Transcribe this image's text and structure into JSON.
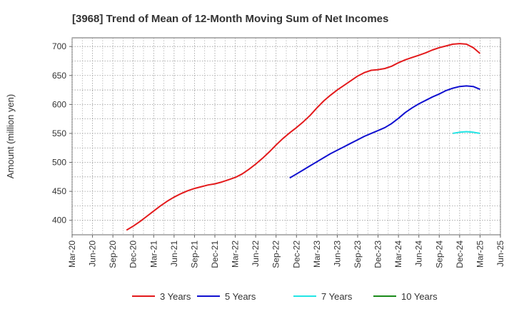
{
  "chart_data": {
    "type": "line",
    "title": "[3968]  Trend of Mean of 12-Month Moving Sum of Net Incomes",
    "ylabel": "Amount (million yen)",
    "xlabel": "",
    "ylim": [
      375,
      715
    ],
    "yticks": [
      400,
      450,
      500,
      550,
      600,
      650,
      700
    ],
    "x_ticks": [
      "Mar-20",
      "Jun-20",
      "Sep-20",
      "Dec-20",
      "Mar-21",
      "Jun-21",
      "Sep-21",
      "Dec-21",
      "Mar-22",
      "Jun-22",
      "Sep-22",
      "Dec-22",
      "Mar-23",
      "Jun-23",
      "Sep-23",
      "Dec-23",
      "Mar-24",
      "Jun-24",
      "Sep-24",
      "Dec-24",
      "Mar-25",
      "Jun-25"
    ],
    "grid": true,
    "legend_position": "bottom",
    "series": [
      {
        "name": "3 Years",
        "color": "#e31a1c",
        "points": [
          [
            "Nov-20",
            383
          ],
          [
            "Dec-20",
            390
          ],
          [
            "Jan-21",
            398
          ],
          [
            "Feb-21",
            407
          ],
          [
            "Mar-21",
            416
          ],
          [
            "Apr-21",
            425
          ],
          [
            "May-21",
            433
          ],
          [
            "Jun-21",
            440
          ],
          [
            "Jul-21",
            446
          ],
          [
            "Aug-21",
            451
          ],
          [
            "Sep-21",
            455
          ],
          [
            "Oct-21",
            458
          ],
          [
            "Nov-21",
            461
          ],
          [
            "Dec-21",
            463
          ],
          [
            "Jan-22",
            466
          ],
          [
            "Feb-22",
            470
          ],
          [
            "Mar-22",
            474
          ],
          [
            "Apr-22",
            480
          ],
          [
            "May-22",
            488
          ],
          [
            "Jun-22",
            497
          ],
          [
            "Jul-22",
            507
          ],
          [
            "Aug-22",
            518
          ],
          [
            "Sep-22",
            530
          ],
          [
            "Oct-22",
            541
          ],
          [
            "Nov-22",
            551
          ],
          [
            "Dec-22",
            560
          ],
          [
            "Jan-23",
            570
          ],
          [
            "Feb-23",
            581
          ],
          [
            "Mar-23",
            594
          ],
          [
            "Apr-23",
            606
          ],
          [
            "May-23",
            616
          ],
          [
            "Jun-23",
            625
          ],
          [
            "Jul-23",
            633
          ],
          [
            "Aug-23",
            641
          ],
          [
            "Sep-23",
            649
          ],
          [
            "Oct-23",
            655
          ],
          [
            "Nov-23",
            659
          ],
          [
            "Dec-23",
            660
          ],
          [
            "Jan-24",
            662
          ],
          [
            "Feb-24",
            666
          ],
          [
            "Mar-24",
            672
          ],
          [
            "Apr-24",
            677
          ],
          [
            "May-24",
            681
          ],
          [
            "Jun-24",
            685
          ],
          [
            "Jul-24",
            689
          ],
          [
            "Aug-24",
            694
          ],
          [
            "Sep-24",
            698
          ],
          [
            "Oct-24",
            701
          ],
          [
            "Nov-24",
            704
          ],
          [
            "Dec-24",
            705
          ],
          [
            "Jan-25",
            704
          ],
          [
            "Feb-25",
            698
          ],
          [
            "Mar-25",
            688
          ]
        ]
      },
      {
        "name": "5 Years",
        "color": "#1010d0",
        "points": [
          [
            "Nov-22",
            473
          ],
          [
            "Dec-22",
            480
          ],
          [
            "Jan-23",
            487
          ],
          [
            "Feb-23",
            494
          ],
          [
            "Mar-23",
            501
          ],
          [
            "Apr-23",
            508
          ],
          [
            "May-23",
            515
          ],
          [
            "Jun-23",
            521
          ],
          [
            "Jul-23",
            527
          ],
          [
            "Aug-23",
            533
          ],
          [
            "Sep-23",
            539
          ],
          [
            "Oct-23",
            545
          ],
          [
            "Nov-23",
            550
          ],
          [
            "Dec-23",
            555
          ],
          [
            "Jan-24",
            560
          ],
          [
            "Feb-24",
            567
          ],
          [
            "Mar-24",
            576
          ],
          [
            "Apr-24",
            586
          ],
          [
            "May-24",
            594
          ],
          [
            "Jun-24",
            601
          ],
          [
            "Jul-24",
            607
          ],
          [
            "Aug-24",
            613
          ],
          [
            "Sep-24",
            618
          ],
          [
            "Oct-24",
            624
          ],
          [
            "Nov-24",
            628
          ],
          [
            "Dec-24",
            631
          ],
          [
            "Jan-25",
            632
          ],
          [
            "Feb-25",
            631
          ],
          [
            "Mar-25",
            626
          ]
        ]
      },
      {
        "name": "7 Years",
        "color": "#22e5e5",
        "points": [
          [
            "Nov-24",
            550
          ],
          [
            "Dec-24",
            552
          ],
          [
            "Jan-25",
            553
          ],
          [
            "Feb-25",
            552
          ],
          [
            "Mar-25",
            550
          ]
        ]
      },
      {
        "name": "10 Years",
        "color": "#1a8a1a",
        "points": []
      }
    ]
  }
}
